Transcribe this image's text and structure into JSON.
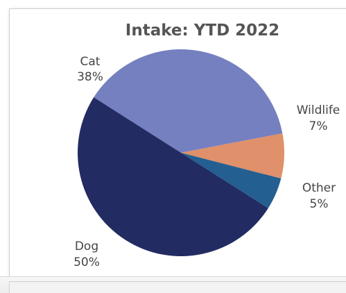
{
  "chart_data": {
    "type": "pie",
    "title": "Intake: YTD 2022",
    "slices": [
      {
        "name": "Cat",
        "value": 38,
        "label": "38%",
        "color": "#7580c0"
      },
      {
        "name": "Wildlife",
        "value": 7,
        "label": "7%",
        "color": "#e0906a"
      },
      {
        "name": "Other",
        "value": 5,
        "label": "5%",
        "color": "#245f91"
      },
      {
        "name": "Dog",
        "value": 50,
        "label": "50%",
        "color": "#222c62"
      }
    ]
  }
}
